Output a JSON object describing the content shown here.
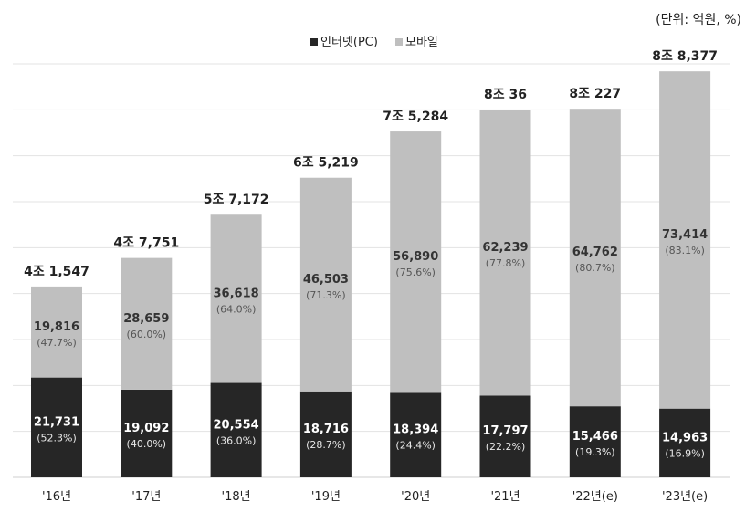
{
  "unit_label": "(단위: 억원, %)",
  "chart_data": {
    "type": "bar",
    "stacked": true,
    "title": "",
    "xlabel": "",
    "ylabel": "",
    "unit": "(단위: 억원, %)",
    "categories": [
      "'16년",
      "'17년",
      "'18년",
      "'19년",
      "'20년",
      "'21년",
      "'22년(e)",
      "'23년(e)"
    ],
    "totals": [
      "4조 1,547",
      "4조 7,751",
      "5조 7,172",
      "6조 5,219",
      "7조 5,284",
      "8조 36",
      "8조 227",
      "8조 8,377"
    ],
    "series": [
      {
        "name": "인터넷(PC)",
        "color": "#262626",
        "values": [
          21731,
          19092,
          20554,
          18716,
          18394,
          17797,
          15466,
          14963
        ],
        "value_labels": [
          "21,731",
          "19,092",
          "20,554",
          "18,716",
          "18,394",
          "17,797",
          "15,466",
          "14,963"
        ],
        "percent_labels": [
          "(52.3%)",
          "(40.0%)",
          "(36.0%)",
          "(28.7%)",
          "(24.4%)",
          "(22.2%)",
          "(19.3%)",
          "(16.9%)"
        ]
      },
      {
        "name": "모바일",
        "color": "#bfbfbf",
        "values": [
          19816,
          28659,
          36618,
          46503,
          56890,
          62239,
          64762,
          73414
        ],
        "value_labels": [
          "19,816",
          "28,659",
          "36,618",
          "46,503",
          "56,890",
          "62,239",
          "64,762",
          "73,414"
        ],
        "percent_labels": [
          "(47.7%)",
          "(60.0%)",
          "(64.0%)",
          "(71.3%)",
          "(75.6%)",
          "(77.8%)",
          "(80.7%)",
          "(83.1%)"
        ]
      }
    ],
    "ylim": [
      0,
      90000
    ],
    "grid": true,
    "legend_position": "top-center"
  }
}
